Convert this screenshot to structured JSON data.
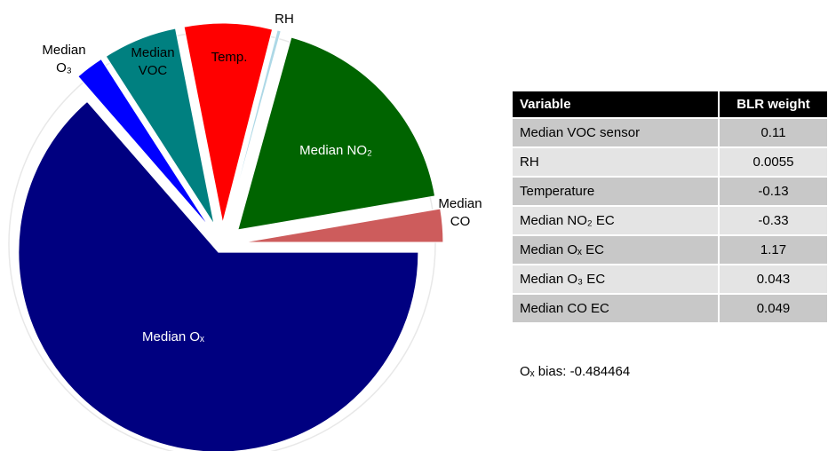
{
  "chart_data": {
    "type": "pie",
    "categories": [
      "Median Oₓ",
      "Median O₃",
      "Median VOC",
      "Temp.",
      "RH",
      "Median NO₂",
      "Median CO"
    ],
    "values": [
      63.6,
      2.3,
      6.0,
      7.1,
      0.3,
      18.0,
      2.7
    ],
    "colors": [
      "#000080",
      "#0000ff",
      "#008080",
      "#ff0000",
      "#add8e6",
      "#006400",
      "#cd5c5c"
    ]
  },
  "table": {
    "header": [
      "Variable",
      "BLR weight"
    ],
    "rows": [
      [
        "Median VOC sensor",
        "0.11"
      ],
      [
        "RH",
        "0.0055"
      ],
      [
        "Temperature",
        "-0.13"
      ],
      [
        "Median NO₂ EC",
        "-0.33"
      ],
      [
        "Median Oₓ EC",
        "1.17"
      ],
      [
        "Median O₃ EC",
        "0.043"
      ],
      [
        "Median CO EC",
        "0.049"
      ]
    ]
  },
  "note": "Oₓ bias: -0.484464"
}
